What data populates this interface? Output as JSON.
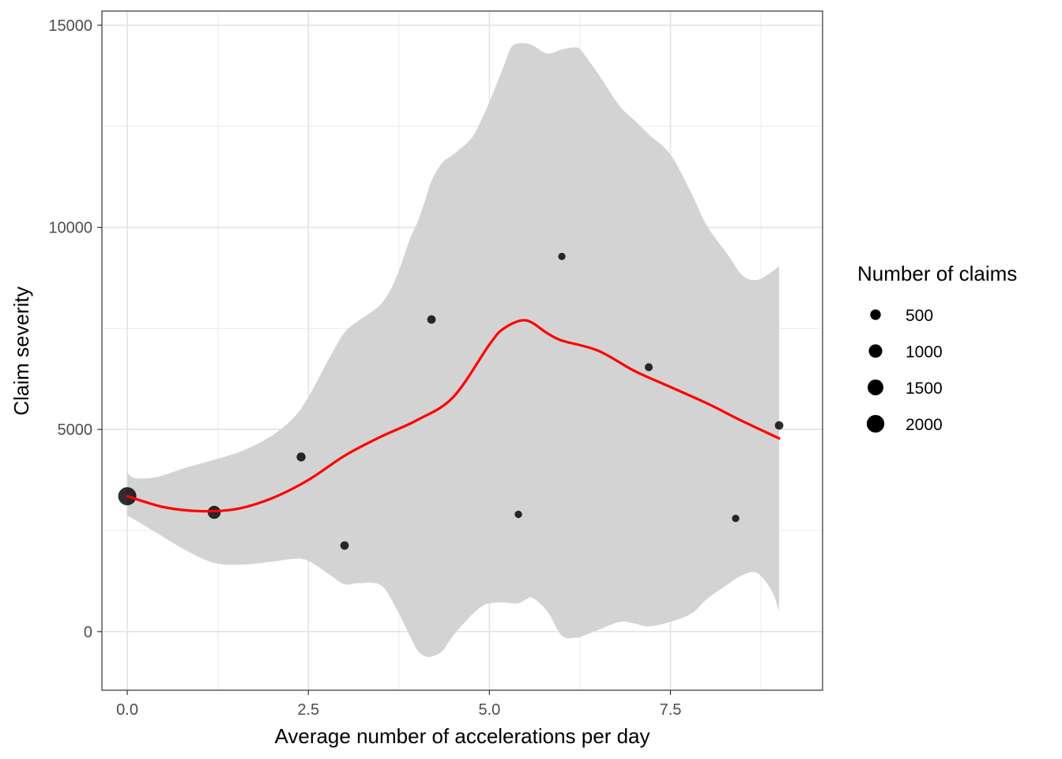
{
  "chart_data": {
    "type": "scatter",
    "xlabel": "Average number of accelerations per day",
    "ylabel": "Claim severity",
    "xlim": [
      -0.35,
      9.6
    ],
    "ylim": [
      -1450,
      15350
    ],
    "x_ticks": [
      {
        "value": 0,
        "label": "0.0"
      },
      {
        "value": 2.5,
        "label": "2.5"
      },
      {
        "value": 5,
        "label": "5.0"
      },
      {
        "value": 7.5,
        "label": "7.5"
      }
    ],
    "y_ticks": [
      {
        "value": 0,
        "label": "0"
      },
      {
        "value": 5000,
        "label": "5000"
      },
      {
        "value": 10000,
        "label": "10000"
      },
      {
        "value": 15000,
        "label": "15000"
      }
    ],
    "grid": true,
    "points": [
      {
        "x": 0.0,
        "y": 3350,
        "n": 2150
      },
      {
        "x": 1.2,
        "y": 2950,
        "n": 900
      },
      {
        "x": 2.4,
        "y": 4320,
        "n": 300
      },
      {
        "x": 3.0,
        "y": 2130,
        "n": 250
      },
      {
        "x": 4.2,
        "y": 7720,
        "n": 250
      },
      {
        "x": 5.4,
        "y": 2900,
        "n": 150
      },
      {
        "x": 6.0,
        "y": 9280,
        "n": 150
      },
      {
        "x": 7.2,
        "y": 6540,
        "n": 200
      },
      {
        "x": 8.4,
        "y": 2800,
        "n": 150
      },
      {
        "x": 9.0,
        "y": 5100,
        "n": 250
      }
    ],
    "smooth": {
      "color": "#ff0000",
      "x": [
        0.0,
        0.5,
        1.0,
        1.5,
        2.0,
        2.5,
        3.0,
        3.5,
        4.0,
        4.5,
        5.0,
        5.2,
        5.5,
        5.8,
        6.0,
        6.5,
        7.0,
        7.5,
        8.0,
        8.5,
        9.0
      ],
      "y": [
        3350,
        3080,
        2980,
        3030,
        3300,
        3750,
        4350,
        4820,
        5230,
        5800,
        7100,
        7500,
        7700,
        7380,
        7200,
        6950,
        6450,
        6050,
        5650,
        5200,
        4780
      ]
    },
    "band": {
      "color": "#d3d3d3",
      "x": [
        0.0,
        0.1,
        0.4,
        0.8,
        1.2,
        1.6,
        2.0,
        2.3,
        2.5,
        2.8,
        3.0,
        3.2,
        3.5,
        3.7,
        3.9,
        4.0,
        4.1,
        4.2,
        4.35,
        4.5,
        4.75,
        4.9,
        5.0,
        5.2,
        5.3,
        5.4,
        5.5,
        5.6,
        5.8,
        6.0,
        6.2,
        6.3,
        6.5,
        6.8,
        7.0,
        7.2,
        7.5,
        7.8,
        8.0,
        8.3,
        8.5,
        8.7,
        8.9,
        9.0
      ],
      "upper": [
        3930,
        3800,
        3820,
        4050,
        4250,
        4480,
        4850,
        5300,
        5800,
        6800,
        7400,
        7700,
        8100,
        8700,
        9700,
        10100,
        10600,
        11150,
        11600,
        11800,
        12200,
        12700,
        13100,
        14000,
        14450,
        14550,
        14550,
        14500,
        14300,
        14400,
        14450,
        14300,
        13800,
        13000,
        12650,
        12300,
        11800,
        10800,
        10050,
        9300,
        8800,
        8700,
        8900,
        9050
      ],
      "lower": [
        2870,
        2770,
        2450,
        2020,
        1700,
        1660,
        1730,
        1800,
        1750,
        1400,
        1170,
        1200,
        1150,
        620,
        -100,
        -450,
        -600,
        -620,
        -480,
        -100,
        400,
        630,
        700,
        720,
        700,
        700,
        790,
        830,
        500,
        -100,
        -150,
        -100,
        40,
        240,
        200,
        130,
        240,
        460,
        800,
        1180,
        1400,
        1450,
        1000,
        500
      ]
    },
    "legend": {
      "title": "Number of claims",
      "placement": "right",
      "entries": [
        {
          "label": "500",
          "n": 500
        },
        {
          "label": "1000",
          "n": 1000
        },
        {
          "label": "1500",
          "n": 1500
        },
        {
          "label": "2000",
          "n": 2000
        }
      ]
    }
  }
}
